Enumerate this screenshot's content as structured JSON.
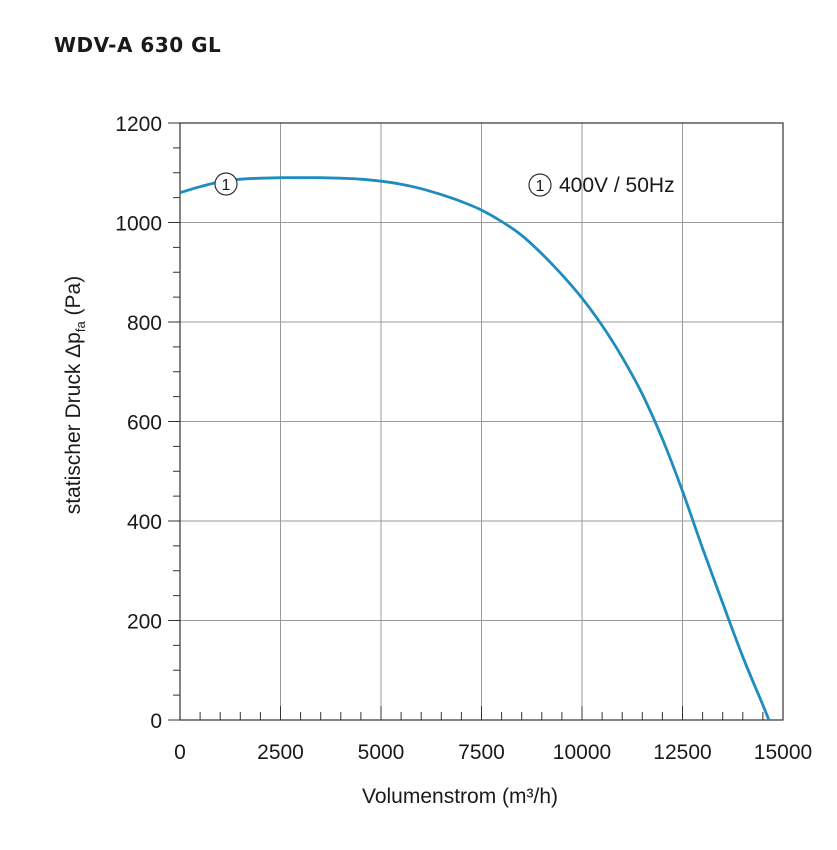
{
  "chart_data": {
    "type": "line",
    "title": "WDV-A 630 GL",
    "xlabel": "Volumenstrom (m³/h)",
    "ylabel": "statischer Druck Δp",
    "ylabel_sub": "fa",
    "ylabel_unit": " (Pa)",
    "xlim": [
      0,
      15000
    ],
    "ylim": [
      0,
      1200
    ],
    "xticks": [
      0,
      2500,
      5000,
      7500,
      10000,
      12500,
      15000
    ],
    "xtick_labels": [
      "0",
      "2500",
      "5000",
      "7500",
      "10000",
      "12500",
      "15000"
    ],
    "yticks": [
      0,
      200,
      400,
      600,
      800,
      1000,
      1200
    ],
    "ytick_labels": [
      "0",
      "200",
      "400",
      "600",
      "800",
      "1000",
      "1200"
    ],
    "grid": true,
    "color": "#1f8cbf",
    "series": [
      {
        "name": "400V / 50Hz",
        "marker": "1",
        "x": [
          0,
          500,
          1000,
          1500,
          2000,
          2500,
          3000,
          3500,
          4000,
          4500,
          5000,
          5500,
          6000,
          6500,
          7000,
          7500,
          8000,
          8500,
          9000,
          9500,
          10000,
          10500,
          11000,
          11500,
          12000,
          12500,
          13000,
          13500,
          14000,
          14500,
          14650
        ],
        "values": [
          1060,
          1072,
          1082,
          1087,
          1089,
          1090,
          1090,
          1090,
          1089,
          1087,
          1083,
          1077,
          1068,
          1056,
          1042,
          1025,
          1002,
          974,
          937,
          895,
          848,
          793,
          729,
          655,
          565,
          460,
          345,
          235,
          127,
          30,
          0
        ]
      }
    ],
    "legend": {
      "marker": "1",
      "text": "400V / 50Hz"
    },
    "curve_marker": {
      "label": "1"
    }
  }
}
